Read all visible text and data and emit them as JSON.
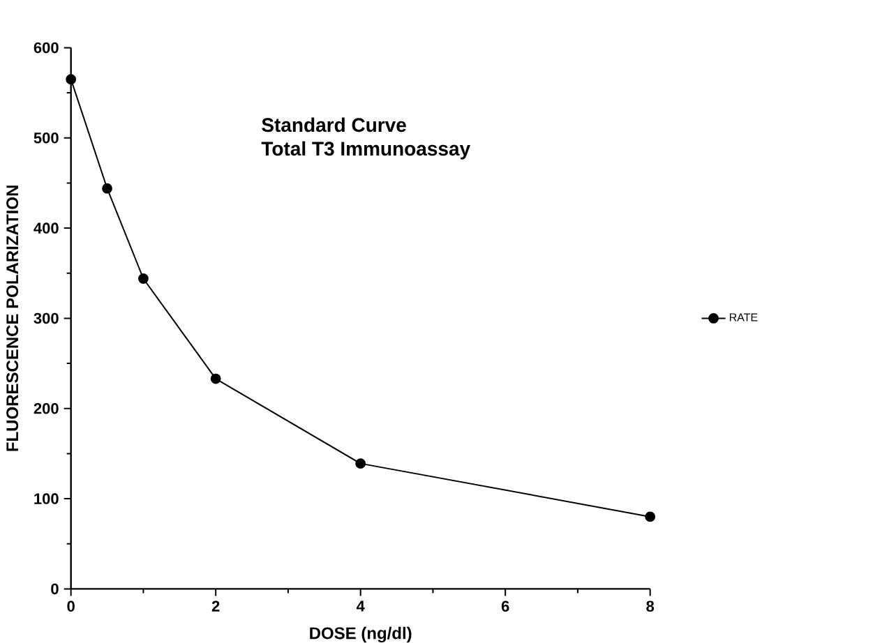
{
  "chart_data": {
    "type": "line",
    "title": "Standard Curve",
    "subtitle": "Total T3 Immunoassay",
    "xlabel": "DOSE  (ng/dl)",
    "ylabel": "FLUORESCENCE POLARIZATION",
    "x": [
      0,
      0.5,
      1,
      2,
      4,
      8
    ],
    "series": [
      {
        "name": "RATE",
        "color": "#000000",
        "values": [
          565,
          444,
          344,
          233,
          139,
          80
        ]
      }
    ],
    "xlim": [
      0,
      8
    ],
    "xticks": [
      0,
      2,
      4,
      6,
      8
    ],
    "ylim": [
      0,
      600
    ],
    "yticks": [
      0,
      100,
      200,
      300,
      400,
      500,
      600
    ],
    "grid": false,
    "legend": "right",
    "marker": "circle",
    "line_style": "solid"
  }
}
